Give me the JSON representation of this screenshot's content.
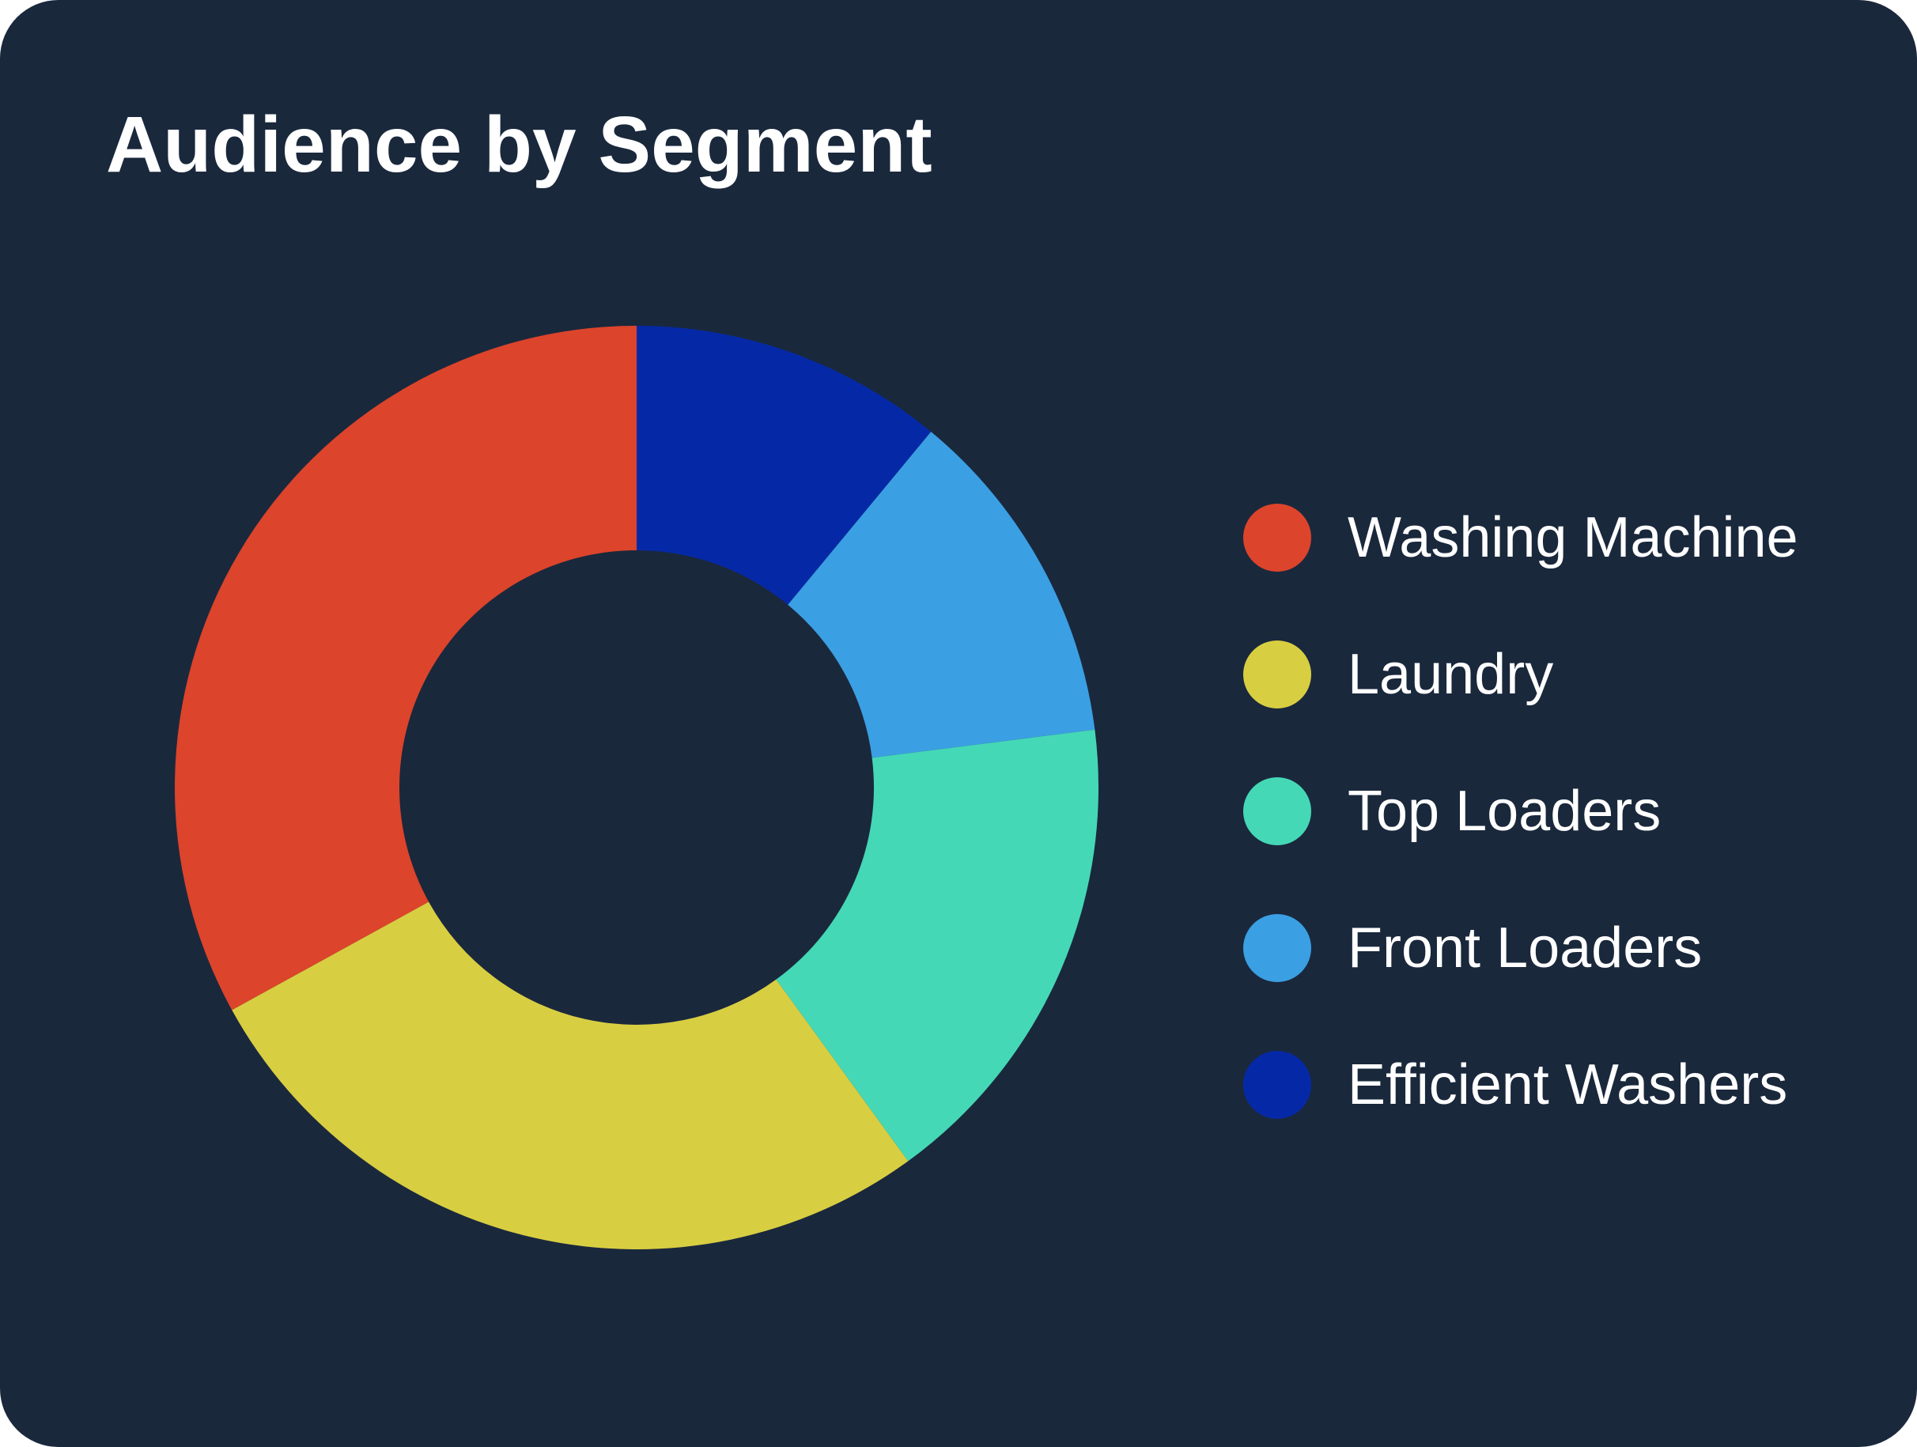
{
  "chart_data": {
    "type": "pie",
    "title": "Audience by Segment",
    "donut": true,
    "legend_position": "right",
    "categories": [
      "Washing Machine",
      "Laundry",
      "Top Loaders",
      "Front Loaders",
      "Efficient Washers"
    ],
    "values": [
      33,
      27,
      17,
      12,
      11
    ],
    "colors": [
      "#dc442b",
      "#d8ce42",
      "#45d8b6",
      "#3b9fe3",
      "#0529a6"
    ]
  },
  "card": {
    "background": "#1a283c"
  }
}
